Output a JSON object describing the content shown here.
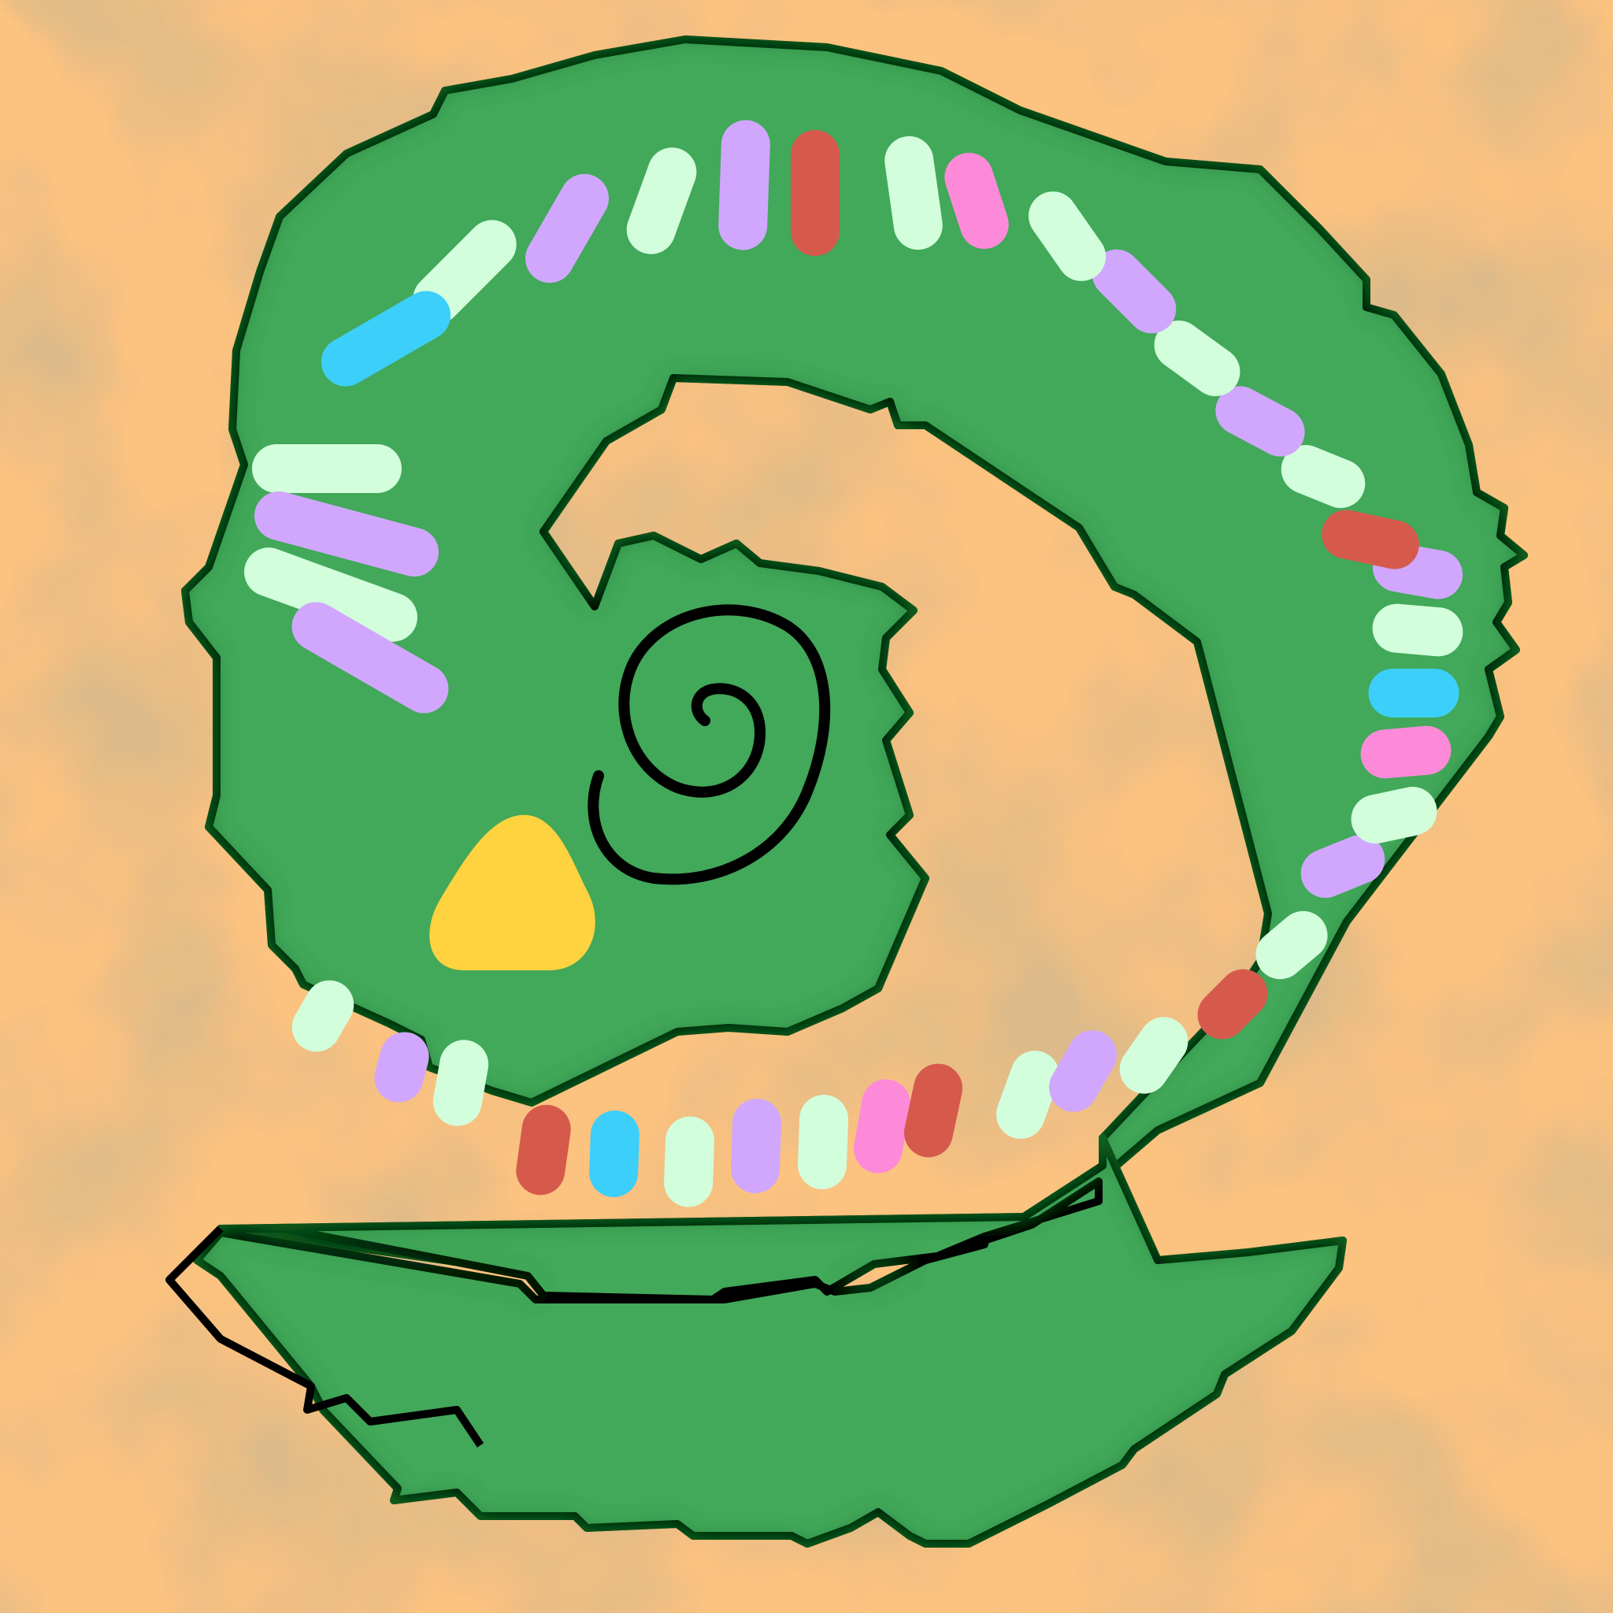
{
  "game": {
    "board_type": "spiral-track",
    "colors": {
      "background": "#fcc27f",
      "stain": "#b97d3f",
      "track": "#43a85a",
      "track_shadow": "#0e6f24",
      "outline": "#000000",
      "center_spiral": "#000000"
    },
    "center_piece": {
      "color": "#ffd23f",
      "shape": "teardrop"
    },
    "tiles": [
      {
        "color": "mint"
      },
      {
        "color": "lavender"
      },
      {
        "color": "mint"
      },
      {
        "color": "red"
      },
      {
        "color": "cyan"
      },
      {
        "color": "mint"
      },
      {
        "color": "lavender"
      },
      {
        "color": "mint"
      },
      {
        "color": "pink"
      },
      {
        "color": "red"
      },
      {
        "color": "mint"
      },
      {
        "color": "lavender"
      },
      {
        "color": "mint"
      },
      {
        "color": "red"
      },
      {
        "color": "mint"
      },
      {
        "color": "lavender"
      },
      {
        "color": "mint"
      },
      {
        "color": "pink"
      },
      {
        "color": "cyan"
      },
      {
        "color": "mint"
      },
      {
        "color": "lavender"
      },
      {
        "color": "red"
      },
      {
        "color": "mint"
      },
      {
        "color": "lavender"
      },
      {
        "color": "mint"
      },
      {
        "color": "lavender"
      },
      {
        "color": "mint"
      },
      {
        "color": "pink"
      },
      {
        "color": "mint"
      },
      {
        "color": "red"
      },
      {
        "color": "lavender"
      },
      {
        "color": "mint"
      },
      {
        "color": "lavender"
      },
      {
        "color": "mint"
      },
      {
        "color": "cyan"
      },
      {
        "color": "mint"
      },
      {
        "color": "lavender"
      },
      {
        "color": "mint"
      },
      {
        "color": "lavender"
      }
    ],
    "palette": {
      "mint": "#d2fedc",
      "lavender": "#d0a7fd",
      "red": "#d55a4b",
      "cyan": "#3ccff9",
      "pink": "#fd8ad8"
    }
  }
}
